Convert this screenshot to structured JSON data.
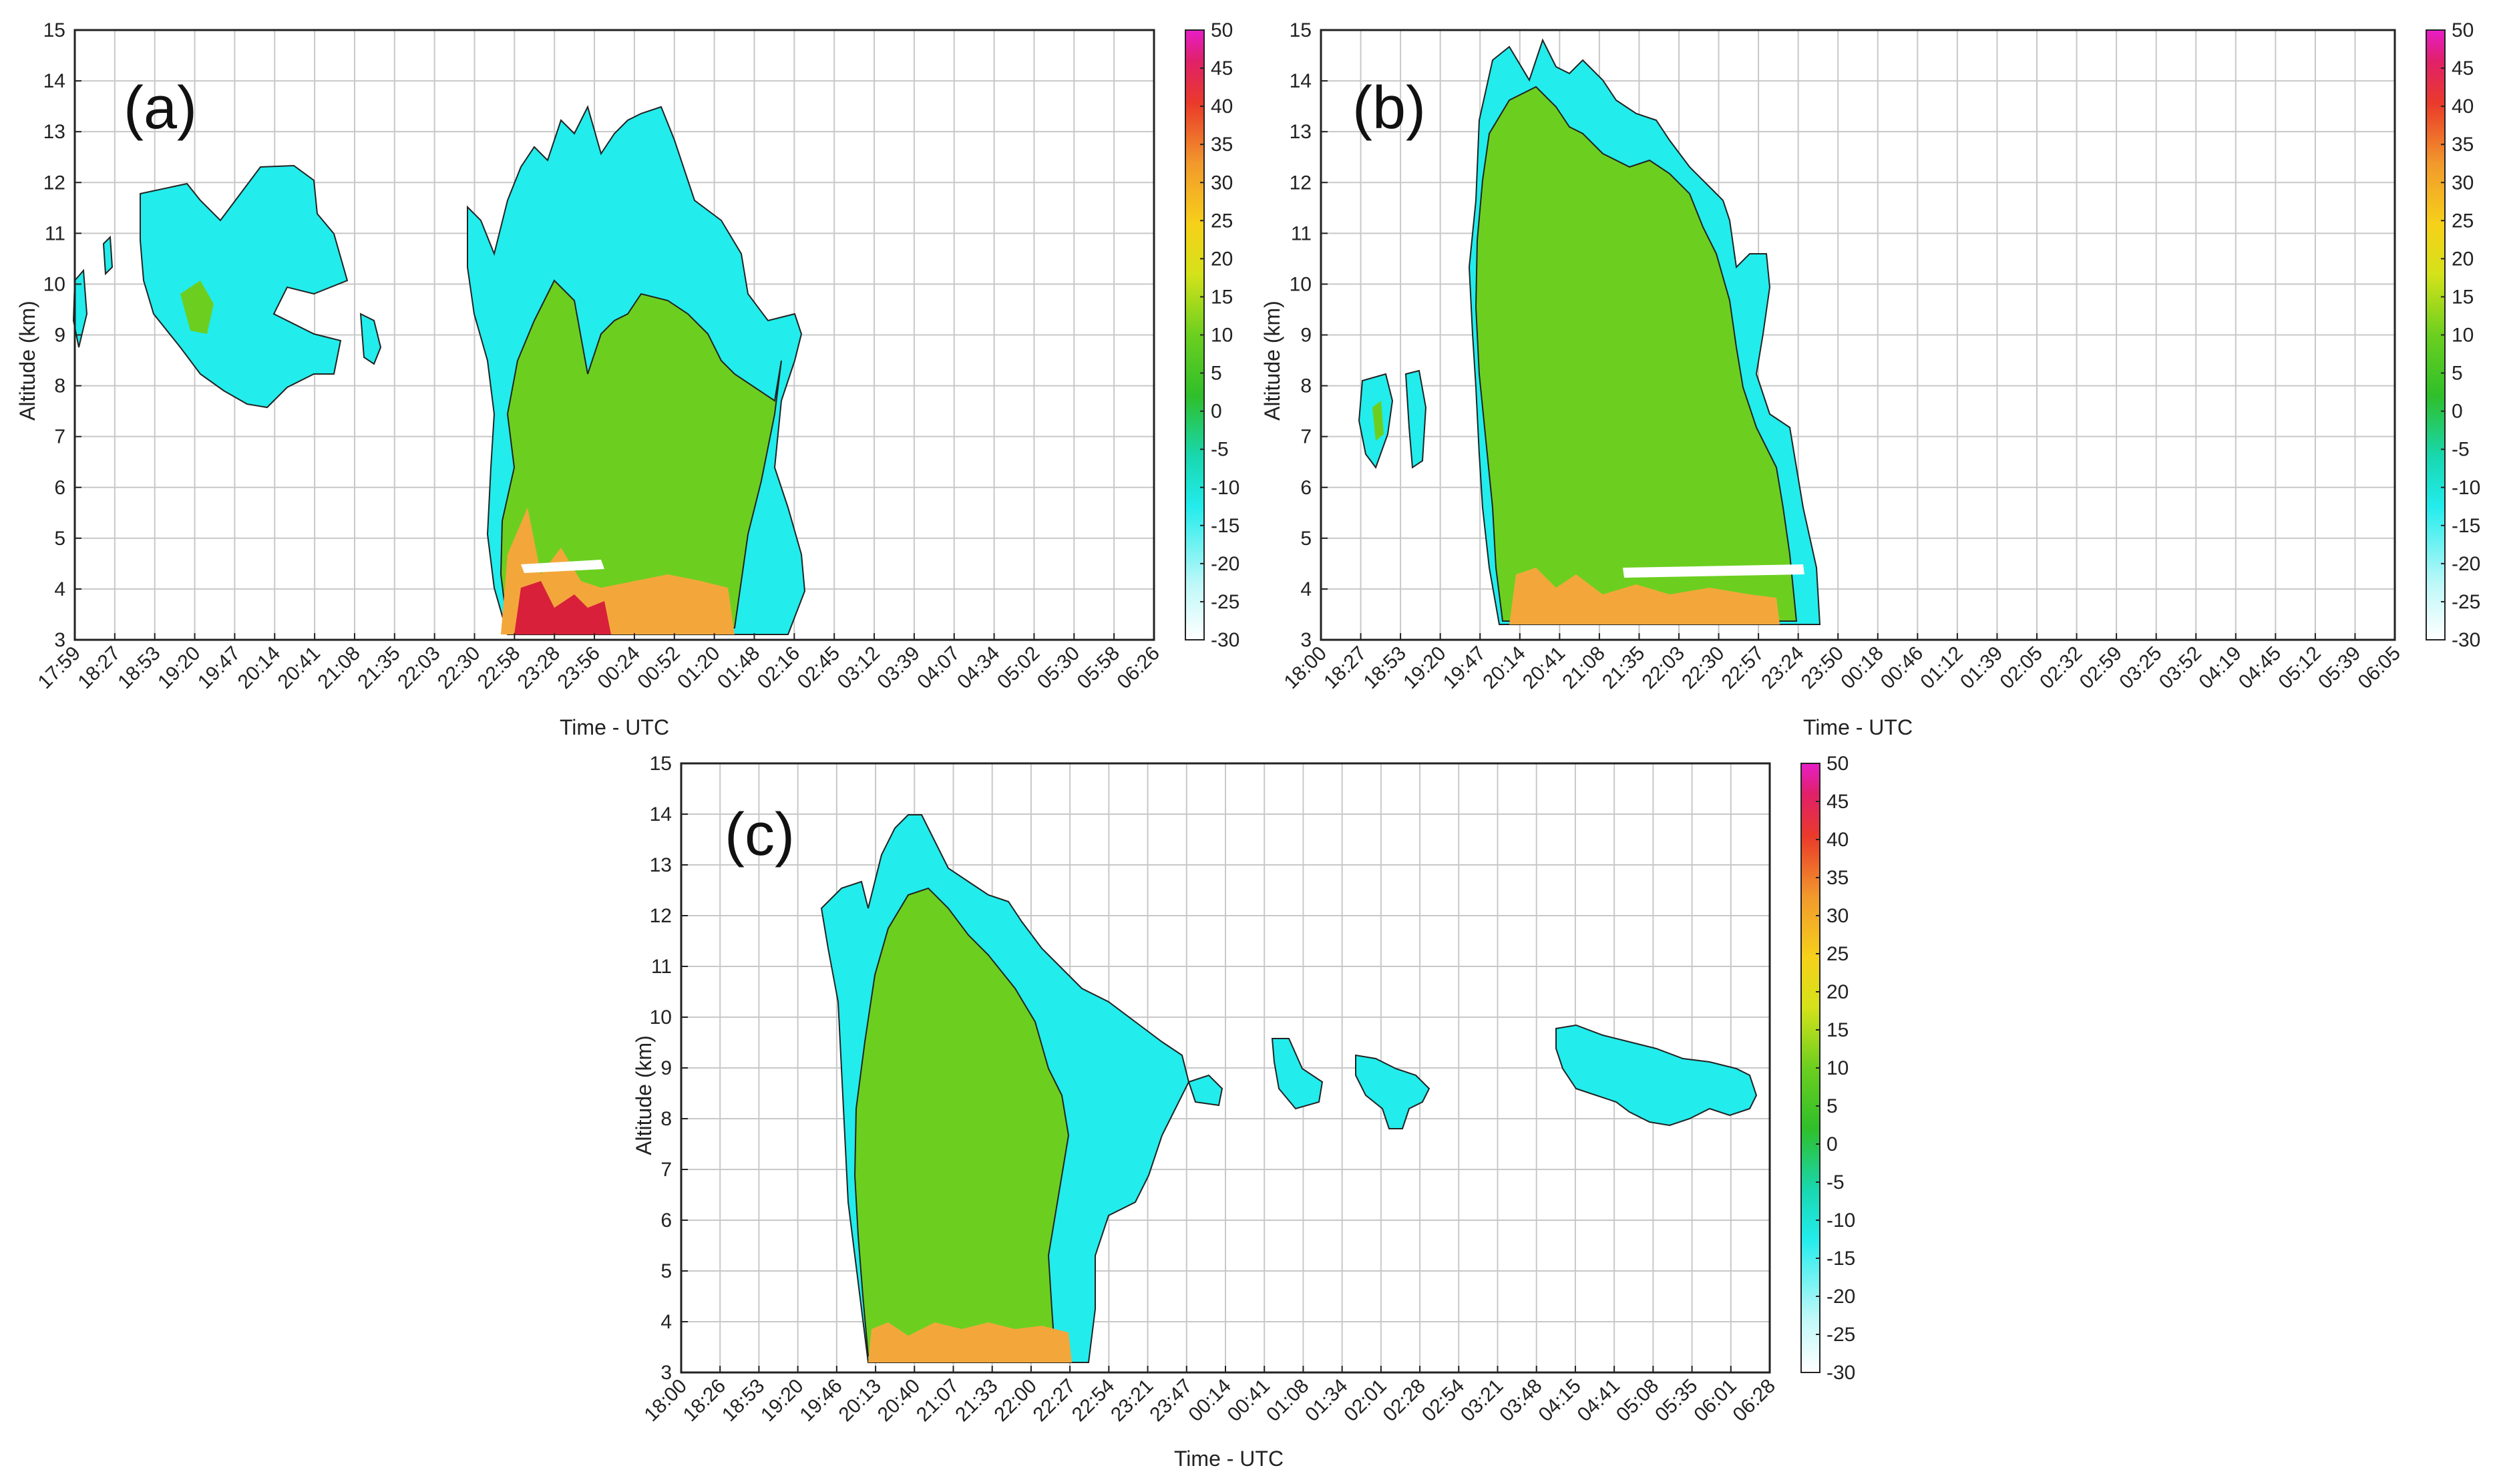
{
  "chart_data": [
    {
      "type": "heatmap",
      "panel_label": "(a)",
      "xlabel": "Time - UTC",
      "ylabel": "Altitude (km)",
      "ylim": [
        3,
        15
      ],
      "yticks": [
        "3",
        "4",
        "5",
        "6",
        "7",
        "8",
        "9",
        "10",
        "11",
        "12",
        "13",
        "14",
        "15"
      ],
      "xticks": [
        "17:59",
        "18:27",
        "18:53",
        "19:20",
        "19:47",
        "20:14",
        "20:41",
        "21:08",
        "21:35",
        "22:03",
        "22:30",
        "22:58",
        "23:28",
        "23:56",
        "00:24",
        "00:52",
        "01:20",
        "01:48",
        "02:16",
        "02:45",
        "03:12",
        "03:39",
        "04:07",
        "04:34",
        "05:02",
        "05:30",
        "05:58",
        "06:26"
      ],
      "colorbar": {
        "ticks": [
          "50",
          "45",
          "40",
          "35",
          "30",
          "25",
          "20",
          "15",
          "10",
          "5",
          "0",
          "-5",
          "-10",
          "-15",
          "-20",
          "-25",
          "-30"
        ],
        "range": [
          -30,
          50
        ]
      }
    },
    {
      "type": "heatmap",
      "panel_label": "(b)",
      "xlabel": "Time - UTC",
      "ylabel": "Altitude (km)",
      "ylim": [
        3,
        15
      ],
      "yticks": [
        "3",
        "4",
        "5",
        "6",
        "7",
        "8",
        "9",
        "10",
        "11",
        "12",
        "13",
        "14",
        "15"
      ],
      "xticks": [
        "18:00",
        "18:27",
        "18:53",
        "19:20",
        "19:47",
        "20:14",
        "20:41",
        "21:08",
        "21:35",
        "22:03",
        "22:30",
        "22:57",
        "23:24",
        "23:50",
        "00:18",
        "00:46",
        "01:12",
        "01:39",
        "02:05",
        "02:32",
        "02:59",
        "03:25",
        "03:52",
        "04:19",
        "04:45",
        "05:12",
        "05:39",
        "06:05"
      ],
      "colorbar": {
        "ticks": [
          "50",
          "45",
          "40",
          "35",
          "30",
          "25",
          "20",
          "15",
          "10",
          "5",
          "0",
          "-5",
          "-10",
          "-15",
          "-20",
          "-25",
          "-30"
        ],
        "range": [
          -30,
          50
        ]
      }
    },
    {
      "type": "heatmap",
      "panel_label": "(c)",
      "xlabel": "Time - UTC",
      "ylabel": "Altitude (km)",
      "ylim": [
        3,
        15
      ],
      "yticks": [
        "3",
        "4",
        "5",
        "6",
        "7",
        "8",
        "9",
        "10",
        "11",
        "12",
        "13",
        "14",
        "15"
      ],
      "xticks": [
        "18:00",
        "18:26",
        "18:53",
        "19:20",
        "19:46",
        "20:13",
        "20:40",
        "21:07",
        "21:33",
        "22:00",
        "22:27",
        "22:54",
        "23:21",
        "23:47",
        "00:14",
        "00:41",
        "01:08",
        "01:34",
        "02:01",
        "02:28",
        "02:54",
        "03:21",
        "03:48",
        "04:15",
        "04:41",
        "05:08",
        "05:35",
        "06:01",
        "06:28"
      ],
      "colorbar": {
        "ticks": [
          "50",
          "45",
          "40",
          "35",
          "30",
          "25",
          "20",
          "15",
          "10",
          "5",
          "0",
          "-5",
          "-10",
          "-15",
          "-20",
          "-25",
          "-30"
        ],
        "range": [
          -30,
          50
        ]
      }
    }
  ],
  "colors": {
    "green": "#6ccf1f",
    "cyan": "#22ecec",
    "orange": "#f3a73b",
    "red": "#d8203a",
    "white": "#ffffff"
  }
}
